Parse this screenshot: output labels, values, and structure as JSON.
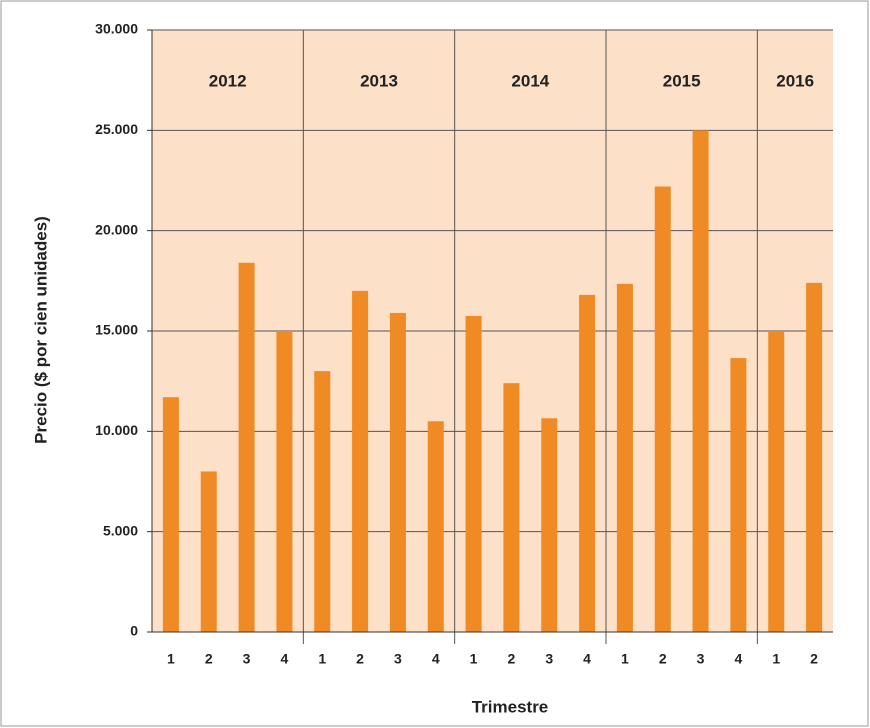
{
  "chart_data": {
    "type": "bar",
    "y_label": "Precio ($ por cien unidades)",
    "x_label": "Trimestre",
    "color": "#f08a24",
    "background": "#fce0c8",
    "groups": [
      {
        "label": "2012",
        "categories": [
          "1",
          "2",
          "3",
          "4"
        ],
        "values": [
          11700,
          8000,
          18400,
          15000
        ]
      },
      {
        "label": "2013",
        "categories": [
          "1",
          "2",
          "3",
          "4"
        ],
        "values": [
          13000,
          17000,
          15900,
          10500
        ]
      },
      {
        "label": "2014",
        "categories": [
          "1",
          "2",
          "3",
          "4"
        ],
        "values": [
          15750,
          12400,
          10650,
          16800
        ]
      },
      {
        "label": "2015",
        "categories": [
          "1",
          "2",
          "3",
          "4"
        ],
        "values": [
          17350,
          22200,
          25000,
          13650
        ]
      },
      {
        "label": "2016",
        "categories": [
          "1",
          "2"
        ],
        "values": [
          15000,
          17400
        ]
      }
    ],
    "ylim": [
      0,
      30000
    ],
    "yticks": [
      0,
      {
        "value": 5000,
        "label": "5.000"
      },
      {
        "value": 10000,
        "label": "10.000"
      },
      {
        "value": 15000,
        "label": "15.000"
      },
      {
        "value": 20000,
        "label": "20.000"
      },
      {
        "value": 25000,
        "label": "25.000"
      },
      {
        "value": 30000,
        "label": "30.000"
      }
    ],
    "grid": true
  }
}
